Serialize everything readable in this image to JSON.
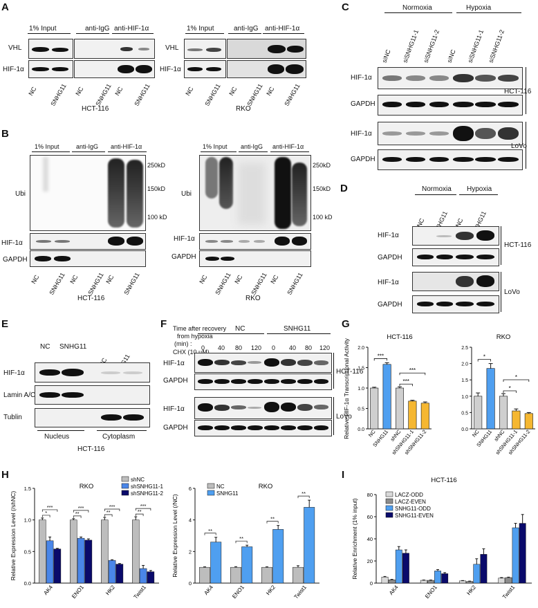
{
  "panels": {
    "A": "A",
    "B": "B",
    "C": "C",
    "D": "D",
    "E": "E",
    "F": "F",
    "G": "G",
    "H": "H",
    "I": "I"
  },
  "labels": {
    "input_1pct": "1% Input",
    "anti_igg": "anti-IgG",
    "anti_hif": "anti-HIF-1α",
    "vhl": "VHL",
    "hif": "HIF-1α",
    "gapdh": "GAPDH",
    "ubi": "Ubi",
    "nc": "NC",
    "snhg11": "SNHG11",
    "hct116": "HCT-116",
    "rko": "RKO",
    "lovo": "LoVo",
    "normoxia": "Normoxia",
    "hypoxia": "Hypoxia",
    "sinc": "siNC",
    "sisnhg11_1": "siSNHG11-1",
    "sisnhg11_2": "siSNHG11-2",
    "lamin": "Lamin A/C",
    "tublin": "Tublin",
    "nucleus": "Nucleus",
    "cytoplasm": "Cytoplasm",
    "kd250": "250kD",
    "kd150": "150kD",
    "kd100": "100 kD",
    "f_time1": "Time after recovery",
    "f_time2": "from hypoxia",
    "f_time3": "(min) :",
    "f_chx": "CHX (10 μM)",
    "t0": "0",
    "t40": "40",
    "t80": "80",
    "t120": "120"
  },
  "chart_data": [
    {
      "id": "G-HCT116",
      "type": "bar",
      "title": "HCT-116",
      "ylabel": "Relative HIF-1α Transcriptional Activity",
      "categories": [
        "NC",
        "SNHG11",
        "shNC",
        "shSNHG11-1",
        "shSNHG11-2"
      ],
      "values": [
        1.0,
        1.58,
        1.0,
        0.68,
        0.63
      ],
      "errors": [
        0.02,
        0.04,
        0.03,
        0.02,
        0.03
      ],
      "colors": [
        "#cfcfcf",
        "#4f9ff0",
        "#cfcfcf",
        "#f5b731",
        "#f5b731"
      ],
      "ylim": [
        0,
        2.0
      ],
      "yticks": [
        "0.0",
        "0.5",
        "1.0",
        "1.5",
        "2.0"
      ],
      "sig": [
        {
          "text": "***"
        },
        {
          "text": "***"
        },
        {
          "text": "***"
        }
      ]
    },
    {
      "id": "G-RKO",
      "type": "bar",
      "title": "RKO",
      "categories": [
        "NC",
        "SNHG11",
        "shNC",
        "shSNHG11-1",
        "shSNHG11-2"
      ],
      "values": [
        1.0,
        1.85,
        1.0,
        0.55,
        0.47
      ],
      "errors": [
        0.1,
        0.15,
        0.08,
        0.06,
        0.03
      ],
      "colors": [
        "#cfcfcf",
        "#4f9ff0",
        "#cfcfcf",
        "#f5b731",
        "#f5b731"
      ],
      "ylim": [
        0,
        2.5
      ],
      "yticks": [
        "0.0",
        "0.5",
        "1.0",
        "1.5",
        "2.0",
        "2.5"
      ],
      "sig": [
        {
          "text": "*"
        },
        {
          "text": "*"
        },
        {
          "text": "*"
        }
      ]
    },
    {
      "id": "H-left",
      "type": "bar",
      "title": "RKO",
      "ylabel": "Relative Expression Level (/shNC)",
      "categories": [
        "AK4",
        "ENO1",
        "HK2",
        "Twist1"
      ],
      "series": [
        {
          "name": "shNC",
          "values": [
            1.0,
            1.0,
            1.0,
            1.0
          ],
          "errors": [
            0.03,
            0.02,
            0.04,
            0.05
          ],
          "color": "#bdbdbd"
        },
        {
          "name": "shSNHG11-1",
          "values": [
            0.67,
            0.71,
            0.36,
            0.23
          ],
          "errors": [
            0.06,
            0.02,
            0.01,
            0.05
          ],
          "color": "#4a86e8"
        },
        {
          "name": "shSNHG11-2",
          "values": [
            0.54,
            0.68,
            0.3,
            0.18
          ],
          "errors": [
            0.01,
            0.02,
            0.01,
            0.02
          ],
          "color": "#0a0a6b"
        }
      ],
      "ylim": [
        0,
        1.5
      ],
      "yticks": [
        "0.0",
        "0.5",
        "1.0",
        "1.5"
      ],
      "sig": [
        "*",
        "***",
        "**",
        "***",
        "**",
        "***",
        "**",
        "***"
      ]
    },
    {
      "id": "H-right",
      "type": "bar",
      "title": "RKO",
      "ylabel": "Relative Expression Level (/NC)",
      "categories": [
        "AK4",
        "ENO1",
        "HK2",
        "Twist1"
      ],
      "series": [
        {
          "name": "NC",
          "values": [
            1.0,
            1.0,
            1.0,
            1.0
          ],
          "errors": [
            0.03,
            0.04,
            0.03,
            0.1
          ],
          "color": "#bdbdbd"
        },
        {
          "name": "SNHG11",
          "values": [
            2.6,
            2.3,
            3.4,
            4.8
          ],
          "errors": [
            0.3,
            0.1,
            0.25,
            0.45
          ],
          "color": "#4f9ff0"
        }
      ],
      "ylim": [
        0,
        6
      ],
      "yticks": [
        "0",
        "2",
        "4",
        "6"
      ],
      "sig": [
        "**",
        "**",
        "**",
        "**"
      ]
    },
    {
      "id": "I",
      "type": "bar",
      "title": "HCT-116",
      "ylabel": "Relative Enrichment (1% input)",
      "categories": [
        "AK4",
        "ENO1",
        "HK2",
        "Twist1"
      ],
      "series": [
        {
          "name": "LACZ-ODD",
          "values": [
            5.5,
            2.5,
            2.0,
            4.5
          ],
          "errors": [
            0.5,
            0.3,
            0.3,
            0.5
          ],
          "color": "#d9d9d9"
        },
        {
          "name": "LACZ-EVEN",
          "values": [
            3.0,
            2.5,
            1.5,
            5.0
          ],
          "errors": [
            0.4,
            0.3,
            0.3,
            0.4
          ],
          "color": "#8c8c8c"
        },
        {
          "name": "SNHG11-ODD",
          "values": [
            30,
            11,
            17,
            50
          ],
          "errors": [
            3,
            1.2,
            5,
            4
          ],
          "color": "#4f9ff0"
        },
        {
          "name": "SNHG11-EVEN",
          "values": [
            27,
            8.5,
            26,
            54
          ],
          "errors": [
            3,
            1,
            5,
            8
          ],
          "color": "#0a0a6b"
        }
      ],
      "ylim": [
        0,
        80
      ],
      "yticks": [
        "0",
        "20",
        "40",
        "60",
        "80"
      ]
    }
  ]
}
